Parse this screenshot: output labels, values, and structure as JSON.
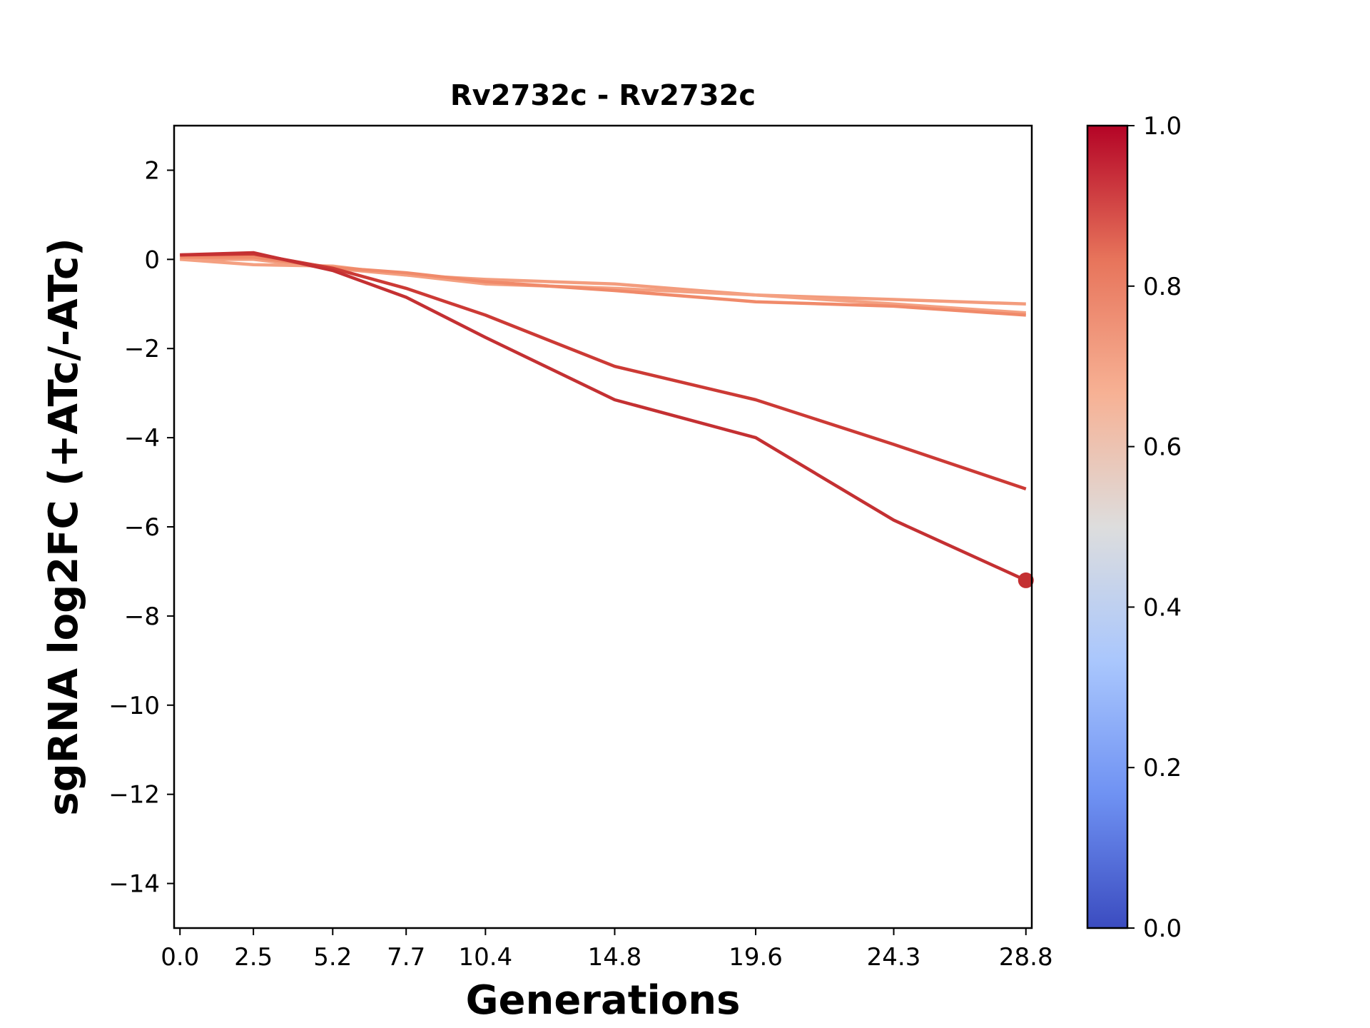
{
  "chart_data": {
    "type": "line",
    "title": "Rv2732c - Rv2732c",
    "xlabel": "Generations",
    "ylabel": "sgRNA log2FC (+ATc/-ATc)",
    "x": [
      0.0,
      2.5,
      5.2,
      7.7,
      10.4,
      14.8,
      19.6,
      24.3,
      28.8
    ],
    "x_tick_labels": [
      "0.0",
      "2.5",
      "5.2",
      "7.7",
      "10.4",
      "14.8",
      "19.6",
      "24.3",
      "28.8"
    ],
    "y_ticks": [
      2,
      0,
      -2,
      -4,
      -6,
      -8,
      -10,
      -12,
      -14
    ],
    "y_tick_labels": [
      "2",
      "0",
      "−2",
      "−4",
      "−6",
      "−8",
      "−10",
      "−12",
      "−14"
    ],
    "xlim": [
      -0.2,
      29.0
    ],
    "ylim": [
      -15,
      3
    ],
    "grid": false,
    "series": [
      {
        "color": "#f39c7d",
        "values": [
          0.0,
          0.0,
          -0.2,
          -0.35,
          -0.45,
          -0.55,
          -0.8,
          -0.9,
          -1.0
        ]
      },
      {
        "color": "#f4a081",
        "values": [
          0.0,
          -0.12,
          -0.15,
          -0.35,
          -0.55,
          -0.65,
          -0.8,
          -1.0,
          -1.2
        ]
      },
      {
        "color": "#f08a6a",
        "values": [
          0.05,
          0.05,
          -0.18,
          -0.3,
          -0.5,
          -0.7,
          -0.95,
          -1.05,
          -1.25
        ]
      },
      {
        "color": "#cc3a35",
        "values": [
          0.1,
          0.12,
          -0.2,
          -0.65,
          -1.25,
          -2.4,
          -3.15,
          -4.15,
          -5.15
        ]
      },
      {
        "color": "#c43032",
        "values": [
          0.1,
          0.15,
          -0.25,
          -0.85,
          -1.75,
          -3.15,
          -4.0,
          -5.85,
          -7.2
        ]
      }
    ],
    "highlight_point": {
      "series_index": 4,
      "x": 28.8,
      "y": -7.2,
      "color": "#c43032"
    },
    "colorbar": {
      "colormap": "coolwarm",
      "range": [
        0.0,
        1.0
      ],
      "ticks": [
        0.0,
        0.2,
        0.4,
        0.6,
        0.8,
        1.0
      ],
      "tick_labels": [
        "0.0",
        "0.2",
        "0.4",
        "0.6",
        "0.8",
        "1.0"
      ],
      "stops": [
        "#3b4cc0",
        "#6f92f3",
        "#aac7fd",
        "#dddddd",
        "#f7b194",
        "#e7745b",
        "#b40426"
      ]
    }
  }
}
